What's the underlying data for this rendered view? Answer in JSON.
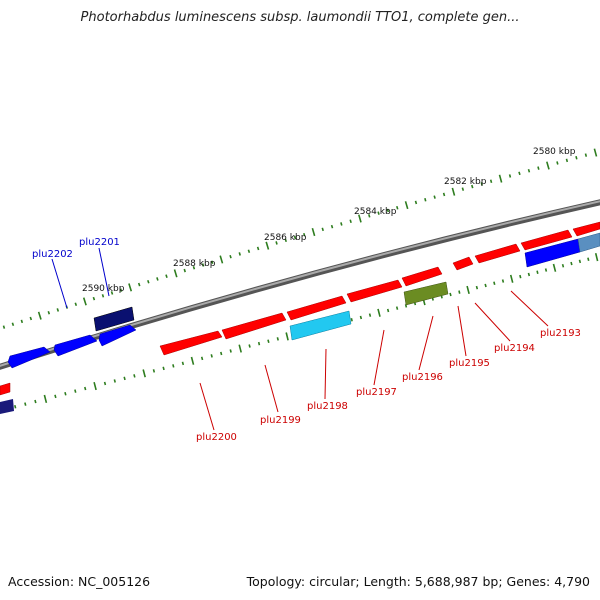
{
  "title": "Photorhabdus luminescens subsp. laumondii TTO1, complete gen...",
  "footer": {
    "accession": "Accession: NC_005126",
    "summary": "Topology: circular; Length: 5,688,987 bp; Genes: 4,790"
  },
  "colors": {
    "backbone": "#777777",
    "tick": "#2e7d1f",
    "forward_gene": "#ff0000",
    "reverse_gene": "#0000ff",
    "dark_gene": "#0a1070",
    "cyan_gene": "#22c8f0",
    "olive_gene": "#6b8c22",
    "steel_gene": "#5a8fc0",
    "forward_label": "#cc0000",
    "reverse_label": "#0000cc"
  },
  "scale_labels": [
    "2580 kbp",
    "2582 kbp",
    "2584 kbp",
    "2586 kbp",
    "2588 kbp",
    "2590 kbp"
  ],
  "forward_labels": [
    "plu2193",
    "plu2194",
    "plu2195",
    "plu2196",
    "plu2197",
    "plu2198",
    "plu2199",
    "plu2200"
  ],
  "reverse_labels": [
    "plu2201",
    "plu2202"
  ]
}
